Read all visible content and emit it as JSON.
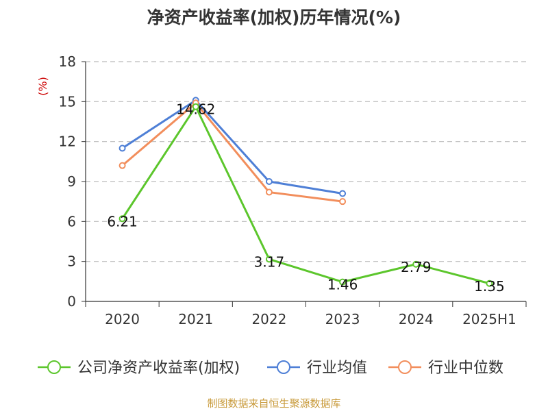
{
  "chart_data": {
    "type": "line",
    "title": "净资产收益率(加权)历年情况(%)",
    "ylabel": "(%)",
    "ylim": [
      0,
      18
    ],
    "yticks": [
      0,
      3,
      6,
      9,
      12,
      15,
      18
    ],
    "categories": [
      "2020",
      "2021",
      "2022",
      "2023",
      "2024",
      "2025H1"
    ],
    "grid": true,
    "legend": "bottom",
    "series": [
      {
        "name": "公司净资产收益率(加权)",
        "color": "#5cc62c",
        "values": [
          6.21,
          14.62,
          3.17,
          1.46,
          2.79,
          1.35
        ],
        "labels": [
          "6.21",
          "14.62",
          "3.17",
          "1.46",
          "2.79",
          "1.35"
        ]
      },
      {
        "name": "行业均值",
        "color": "#4e7fd6",
        "values": [
          11.5,
          15.1,
          9.0,
          8.1,
          null,
          null
        ]
      },
      {
        "name": "行业中位数",
        "color": "#f28e5c",
        "values": [
          10.2,
          14.9,
          8.2,
          7.5,
          null,
          null
        ]
      }
    ]
  },
  "source": "制图数据来自恒生聚源数据库"
}
